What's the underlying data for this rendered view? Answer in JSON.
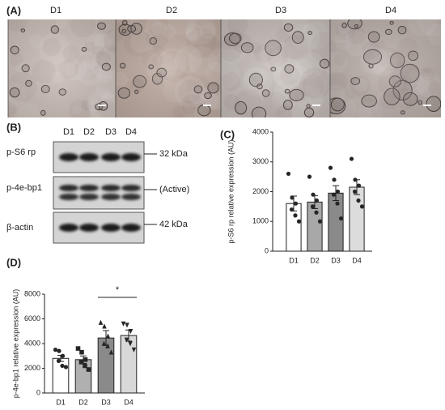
{
  "panels": {
    "a": {
      "label": "(A)",
      "images": [
        "D1",
        "D2",
        "D3",
        "D4"
      ]
    },
    "b": {
      "label": "(B)",
      "lanes": [
        "D1",
        "D2",
        "D3",
        "D4"
      ],
      "rows": [
        {
          "name": "p-S6 rp",
          "marker": "32 kDa"
        },
        {
          "name": "p-4e-bp1",
          "marker": "(Active)"
        },
        {
          "name": "β-actin",
          "marker": "42 kDa"
        }
      ]
    },
    "c": {
      "label": "(C)"
    },
    "d": {
      "label": "(D)"
    }
  },
  "chart_data": [
    {
      "type": "bar",
      "y_label": "p-S6 rp relative expression (AU)",
      "categories": [
        "D1",
        "D2",
        "D3",
        "D4"
      ],
      "values": [
        1600,
        1650,
        1950,
        2150
      ],
      "errors": [
        250,
        220,
        250,
        250
      ],
      "points": [
        [
          2600,
          1800,
          1600,
          1400,
          1200,
          1000
        ],
        [
          2500,
          1900,
          1700,
          1500,
          1300,
          1000
        ],
        [
          2800,
          2400,
          2000,
          1900,
          1600,
          1100
        ],
        [
          3100,
          2400,
          2200,
          2000,
          1700,
          1500
        ]
      ],
      "colors": [
        "#ffffff",
        "#a8a8a8",
        "#8a8a8a",
        "#dcdcdc"
      ],
      "markers": [
        "circle",
        "circle",
        "circle",
        "circle"
      ],
      "ylim": [
        0,
        4000
      ],
      "yticks": [
        0,
        1000,
        2000,
        3000,
        4000
      ]
    },
    {
      "type": "bar",
      "y_label": "p-4e-bp1 relative expression (AU)",
      "categories": [
        "D1",
        "D2",
        "D3",
        "D4"
      ],
      "values": [
        2800,
        2700,
        4450,
        4650
      ],
      "errors": [
        250,
        300,
        600,
        450
      ],
      "points": [
        [
          3500,
          3400,
          3000,
          2600,
          2200,
          2100
        ],
        [
          3600,
          3300,
          2700,
          2500,
          2200,
          1900
        ],
        [
          5700,
          5400,
          4600,
          4000,
          3800,
          3300
        ],
        [
          5600,
          5500,
          5000,
          4300,
          4000,
          3500
        ]
      ],
      "colors": [
        "#ffffff",
        "#b0b0b0",
        "#8a8a8a",
        "#d8d8d8"
      ],
      "markers": [
        "circle",
        "square",
        "triangle",
        "triangle-down"
      ],
      "ylim": [
        0,
        8000
      ],
      "yticks": [
        0,
        2000,
        4000,
        6000,
        8000
      ],
      "annotations": [
        {
          "text": "*",
          "from": "D3",
          "to": "D4"
        }
      ]
    }
  ]
}
